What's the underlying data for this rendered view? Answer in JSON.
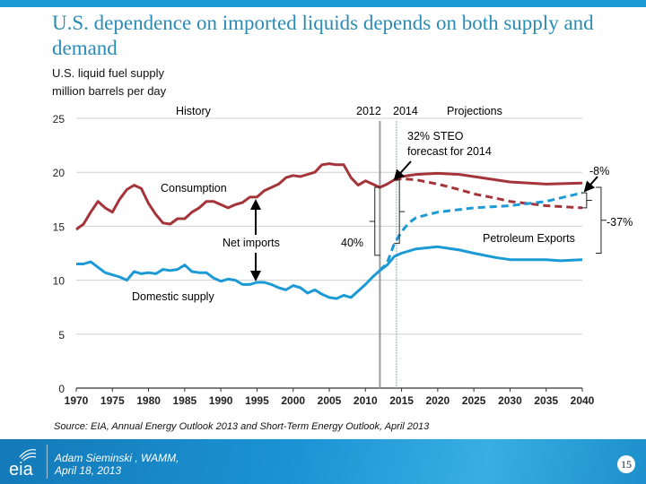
{
  "slide": {
    "title": "U.S. dependence on imported liquids depends on both supply and demand",
    "source": "Source:  EIA, Annual Energy Outlook 2013 and Short-Term Energy Outlook, April 2013",
    "author_line1": "Adam Sieminski , WAMM,",
    "author_line2": "April 18, 2013",
    "page_number": "15",
    "logo_text": "eia",
    "colors": {
      "title": "#2a8bb5",
      "consumption": "#a4343a",
      "supply": "#1b9ad6",
      "footer": "#1b93d3"
    }
  },
  "chart_data": {
    "type": "line",
    "title": "U.S. liquid fuel supply",
    "ylabel": "million barrels per day",
    "xlim": [
      1970,
      2040
    ],
    "ylim": [
      0,
      25
    ],
    "xticks": [
      1970,
      1975,
      1980,
      1985,
      1990,
      1995,
      2000,
      2005,
      2010,
      2015,
      2020,
      2025,
      2030,
      2035,
      2040
    ],
    "yticks": [
      0,
      5,
      10,
      15,
      20,
      25
    ],
    "grid": "horizontal",
    "series": [
      {
        "name": "Consumption",
        "style": "solid",
        "color": "#a4343a",
        "x": [
          1970,
          1971,
          1972,
          1973,
          1974,
          1975,
          1976,
          1977,
          1978,
          1979,
          1980,
          1981,
          1982,
          1983,
          1984,
          1985,
          1986,
          1987,
          1988,
          1989,
          1990,
          1991,
          1992,
          1993,
          1994,
          1995,
          1996,
          1997,
          1998,
          1999,
          2000,
          2001,
          2002,
          2003,
          2004,
          2005,
          2006,
          2007,
          2008,
          2009,
          2010,
          2011,
          2012,
          2013,
          2014,
          2015,
          2017,
          2020,
          2023,
          2025,
          2028,
          2030,
          2035,
          2040
        ],
        "y": [
          14.7,
          15.2,
          16.3,
          17.3,
          16.7,
          16.3,
          17.5,
          18.4,
          18.8,
          18.5,
          17.1,
          16.1,
          15.3,
          15.2,
          15.7,
          15.7,
          16.3,
          16.7,
          17.3,
          17.3,
          17.0,
          16.7,
          17.0,
          17.2,
          17.7,
          17.7,
          18.3,
          18.6,
          18.9,
          19.5,
          19.7,
          19.6,
          19.8,
          20.0,
          20.7,
          20.8,
          20.7,
          20.7,
          19.5,
          18.8,
          19.2,
          18.9,
          18.6,
          18.9,
          19.3,
          19.6,
          19.8,
          19.9,
          19.8,
          19.6,
          19.3,
          19.1,
          18.9,
          19.0
        ]
      },
      {
        "name": "",
        "style": "dashed",
        "color": "#a4343a",
        "x": [
          2014,
          2015,
          2017,
          2020,
          2023,
          2025,
          2028,
          2030,
          2035,
          2040
        ],
        "y": [
          19.3,
          19.4,
          19.3,
          18.9,
          18.4,
          18.0,
          17.6,
          17.3,
          16.9,
          16.7
        ]
      },
      {
        "name": "Domestic supply",
        "style": "solid",
        "color": "#1b9ad6",
        "x": [
          1970,
          1971,
          1972,
          1973,
          1974,
          1975,
          1976,
          1977,
          1978,
          1979,
          1980,
          1981,
          1982,
          1983,
          1984,
          1985,
          1986,
          1987,
          1988,
          1989,
          1990,
          1991,
          1992,
          1993,
          1994,
          1995,
          1996,
          1997,
          1998,
          1999,
          2000,
          2001,
          2002,
          2003,
          2004,
          2005,
          2006,
          2007,
          2008,
          2009,
          2010,
          2011,
          2012,
          2013,
          2014,
          2015,
          2017,
          2020,
          2023,
          2025,
          2028,
          2030,
          2035,
          2037,
          2040
        ],
        "y": [
          11.5,
          11.5,
          11.7,
          11.2,
          10.7,
          10.5,
          10.3,
          10.0,
          10.8,
          10.6,
          10.7,
          10.6,
          11.0,
          10.9,
          11.0,
          11.4,
          10.8,
          10.7,
          10.7,
          10.2,
          9.9,
          10.1,
          10.0,
          9.6,
          9.6,
          9.8,
          9.8,
          9.6,
          9.3,
          9.1,
          9.5,
          9.3,
          8.8,
          9.1,
          8.7,
          8.4,
          8.3,
          8.6,
          8.4,
          9.0,
          9.6,
          10.3,
          10.9,
          11.4,
          12.2,
          12.5,
          12.9,
          13.1,
          12.8,
          12.5,
          12.1,
          11.9,
          11.9,
          11.8,
          11.9
        ]
      },
      {
        "name": "",
        "style": "dashed",
        "color": "#1b9ad6",
        "x": [
          2012,
          2013,
          2014,
          2015,
          2016,
          2017,
          2020,
          2025,
          2030,
          2035,
          2040
        ],
        "y": [
          10.9,
          11.6,
          13.4,
          14.5,
          15.3,
          15.8,
          16.3,
          16.7,
          16.9,
          17.3,
          18.1
        ]
      }
    ],
    "annotations": {
      "history": "History",
      "year2012": "2012",
      "year2014": "2014",
      "projections": "Projections",
      "steo": "32% STEO",
      "steo2": "forecast for 2014",
      "consumption": "Consumption",
      "net_imports": "Net imports",
      "domestic_supply": "Domestic supply",
      "pct40": "40%",
      "pct8": "-8%",
      "pct37": "-37%",
      "exports": "Petroleum Exports"
    }
  }
}
